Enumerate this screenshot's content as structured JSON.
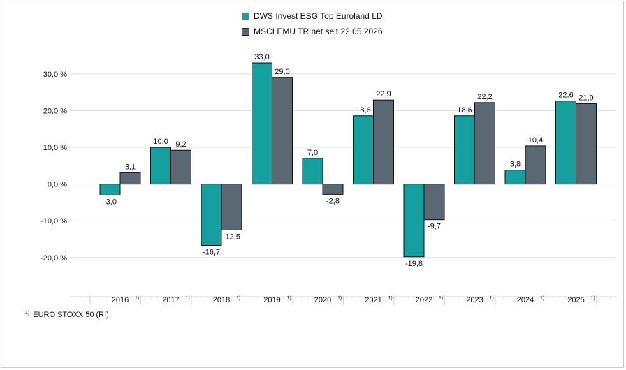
{
  "chart_data": {
    "type": "bar",
    "categories": [
      "2016",
      "2017",
      "2018",
      "2019",
      "2020",
      "2021",
      "2022",
      "2023",
      "2024",
      "2025"
    ],
    "category_note": "1)",
    "series": [
      {
        "name": "DWS Invest ESG Top Euroland LD",
        "values": [
          -3.0,
          10.0,
          -16.7,
          33.0,
          7.0,
          18.6,
          -19.8,
          18.6,
          3.8,
          22.6
        ],
        "labels": [
          "-3,0",
          "10,0",
          "-16,7",
          "33,0",
          "7,0",
          "18,6",
          "-19,8",
          "18,6",
          "3,8",
          "22,6"
        ],
        "color": "#159f9f"
      },
      {
        "name": "MSCI EMU TR net seit 22.05.2026",
        "values": [
          3.1,
          9.2,
          -12.5,
          29.0,
          -2.8,
          22.9,
          -9.7,
          22.2,
          10.4,
          21.9
        ],
        "labels": [
          "3,1",
          "9,2",
          "-12,5",
          "29,0",
          "-2,8",
          "22,9",
          "-9,7",
          "22,2",
          "10,4",
          "21,9"
        ],
        "color": "#5a6873"
      }
    ],
    "yticks": [
      30,
      20,
      10,
      0,
      -10,
      -20
    ],
    "ytick_labels": [
      "30,0 %",
      "20,0 %",
      "10,0 %",
      "0,0 %",
      "-10,0 %",
      "-20,0 %"
    ],
    "ylim": [
      -26.3,
      34.9
    ],
    "grid": true,
    "legend_position": "top-center"
  },
  "footnote": {
    "marker": "1)",
    "text": "EURO STOXX 50 (RI)"
  }
}
